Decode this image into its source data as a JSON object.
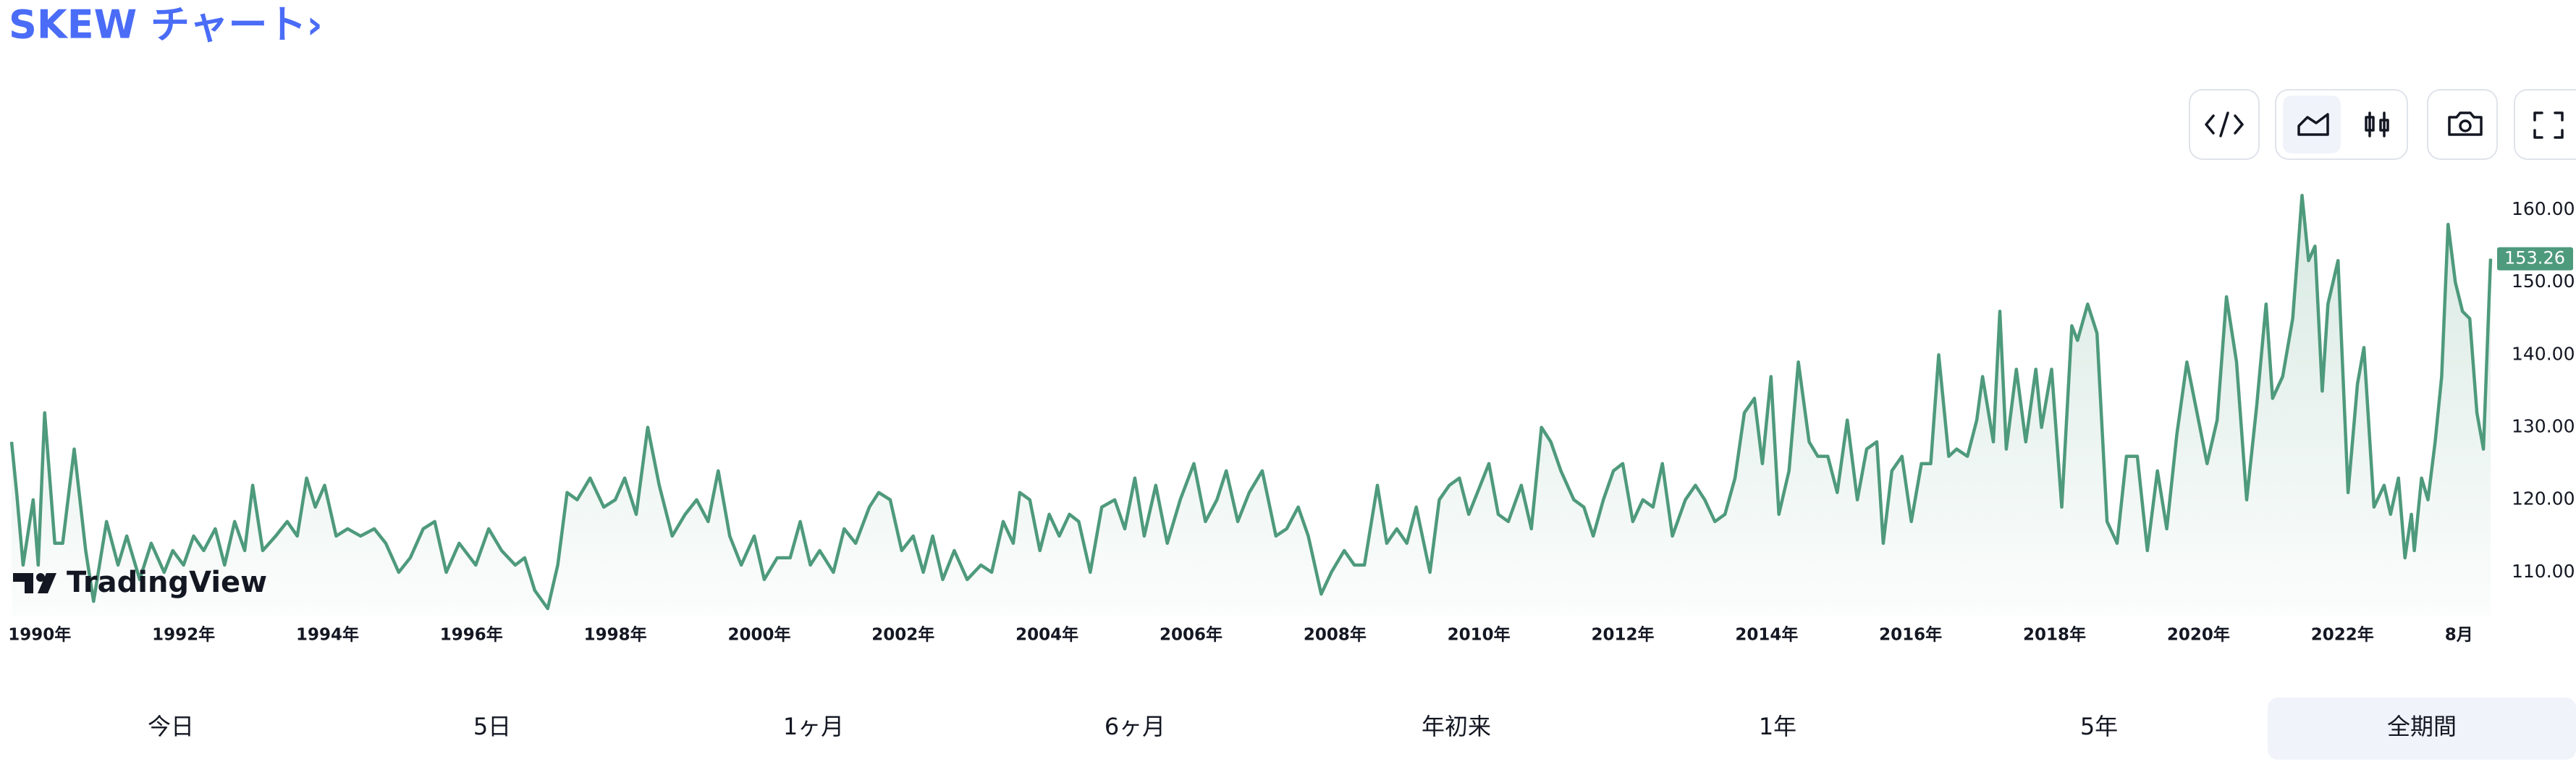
{
  "chart_data": {
    "type": "line",
    "title": "SKEW チャート›",
    "watermark": "TradingView",
    "x": [
      1989.61,
      1989.68,
      1989.77,
      1989.91,
      1989.98,
      1990.07,
      1990.21,
      1990.32,
      1990.48,
      1990.64,
      1990.75,
      1990.93,
      1991.09,
      1991.21,
      1991.39,
      1991.55,
      1991.73,
      1991.85,
      1992.0,
      1992.14,
      1992.28,
      1992.44,
      1992.57,
      1992.71,
      1992.85,
      1992.96,
      1993.1,
      1993.28,
      1993.44,
      1993.58,
      1993.71,
      1993.83,
      1993.96,
      1994.12,
      1994.28,
      1994.46,
      1994.65,
      1994.81,
      1994.99,
      1995.15,
      1995.33,
      1995.49,
      1995.65,
      1995.83,
      1996.06,
      1996.24,
      1996.42,
      1996.61,
      1996.74,
      1996.88,
      1997.06,
      1997.2,
      1997.33,
      1997.47,
      1997.65,
      1997.84,
      1998.0,
      1998.13,
      1998.29,
      1998.45,
      1998.61,
      1998.79,
      1998.97,
      1999.13,
      1999.29,
      1999.43,
      1999.59,
      1999.75,
      1999.93,
      2000.07,
      2000.25,
      2000.43,
      2000.57,
      2000.71,
      2000.84,
      2001.03,
      2001.18,
      2001.34,
      2001.53,
      2001.66,
      2001.82,
      2001.98,
      2002.14,
      2002.28,
      2002.41,
      2002.55,
      2002.71,
      2002.89,
      2003.08,
      2003.23,
      2003.39,
      2003.53,
      2003.62,
      2003.76,
      2003.9,
      2004.03,
      2004.17,
      2004.31,
      2004.44,
      2004.6,
      2004.76,
      2004.94,
      2005.08,
      2005.22,
      2005.35,
      2005.51,
      2005.67,
      2005.85,
      2006.04,
      2006.2,
      2006.36,
      2006.49,
      2006.65,
      2006.81,
      2006.99,
      2007.18,
      2007.33,
      2007.49,
      2007.63,
      2007.81,
      2007.95,
      2008.13,
      2008.27,
      2008.41,
      2008.59,
      2008.72,
      2008.86,
      2009.0,
      2009.13,
      2009.32,
      2009.45,
      2009.59,
      2009.73,
      2009.86,
      2010.02,
      2010.14,
      2010.27,
      2010.41,
      2010.59,
      2010.73,
      2010.87,
      2011.0,
      2011.14,
      2011.32,
      2011.46,
      2011.59,
      2011.73,
      2011.87,
      2012.0,
      2012.14,
      2012.28,
      2012.42,
      2012.55,
      2012.69,
      2012.87,
      2013.01,
      2013.14,
      2013.28,
      2013.42,
      2013.56,
      2013.69,
      2013.83,
      2013.94,
      2014.06,
      2014.17,
      2014.31,
      2014.44,
      2014.59,
      2014.71,
      2014.85,
      2014.98,
      2015.12,
      2015.26,
      2015.39,
      2015.53,
      2015.62,
      2015.74,
      2015.88,
      2016.01,
      2016.15,
      2016.28,
      2016.39,
      2016.53,
      2016.64,
      2016.79,
      2016.92,
      2017.0,
      2017.15,
      2017.24,
      2017.33,
      2017.47,
      2017.6,
      2017.74,
      2017.82,
      2017.96,
      2018.1,
      2018.24,
      2018.32,
      2018.46,
      2018.59,
      2018.73,
      2018.87,
      2019.0,
      2019.15,
      2019.29,
      2019.43,
      2019.56,
      2019.7,
      2019.84,
      2019.98,
      2020.12,
      2020.26,
      2020.39,
      2020.53,
      2020.67,
      2020.81,
      2020.94,
      2021.03,
      2021.17,
      2021.31,
      2021.44,
      2021.53,
      2021.62,
      2021.72,
      2021.8,
      2021.94,
      2022.08,
      2022.21,
      2022.3,
      2022.44,
      2022.58,
      2022.67,
      2022.78,
      2022.87,
      2022.96,
      2023.0,
      2023.1,
      2023.19,
      2023.29,
      2023.38,
      2023.47,
      2023.57,
      2023.67,
      2023.77,
      2023.87,
      2023.96,
      2024.06
    ],
    "series": [
      {
        "name": "SKEW",
        "color": "#4e9a7c",
        "values": [
          128,
          121,
          111,
          120,
          111,
          132,
          114,
          114,
          127,
          113,
          106,
          117,
          111,
          115,
          109,
          114,
          110,
          113,
          111,
          115,
          113,
          116,
          111,
          117,
          113,
          122,
          113,
          115,
          117,
          115,
          123,
          119,
          122,
          115,
          116,
          115,
          116,
          114,
          110,
          112,
          116,
          117,
          110,
          114,
          111,
          116,
          113,
          111,
          112,
          107.5,
          105,
          111,
          121,
          120,
          123,
          119,
          120,
          123,
          118,
          130,
          122,
          115,
          118,
          120,
          117,
          124,
          115,
          111,
          115,
          109,
          112,
          112,
          117,
          111,
          113,
          110,
          116,
          114,
          119,
          121,
          120,
          113,
          115,
          110,
          115,
          109,
          113,
          109,
          111,
          110,
          117,
          114,
          121,
          120,
          113,
          118,
          115,
          118,
          117,
          110,
          119,
          120,
          116,
          123,
          115,
          122,
          114,
          120,
          125,
          117,
          120,
          124,
          117,
          121,
          124,
          115,
          116,
          119,
          115,
          107,
          110,
          113,
          111,
          111,
          122,
          114,
          116,
          114,
          119,
          110,
          120,
          122,
          123,
          118,
          122,
          125,
          118,
          117,
          122,
          116,
          130,
          128,
          124,
          120,
          119,
          115,
          120,
          124,
          125,
          117,
          120,
          119,
          125,
          115,
          120,
          122,
          120,
          117,
          118,
          123,
          132,
          134,
          125,
          137,
          118,
          124,
          139,
          128,
          126,
          126,
          121,
          131,
          120,
          127,
          128,
          114,
          124,
          126,
          117,
          125,
          125,
          140,
          126,
          127,
          126,
          131,
          137,
          128,
          146,
          127,
          138,
          128,
          138,
          130,
          138,
          119,
          144,
          142,
          147,
          143,
          117,
          114,
          126,
          126,
          113,
          124,
          116,
          129,
          139,
          132,
          125,
          131,
          148,
          139,
          120,
          133,
          147,
          134,
          137,
          145,
          162,
          153,
          155,
          135,
          147,
          153,
          121,
          136,
          141,
          119,
          122,
          118,
          123,
          112,
          118,
          113,
          123,
          120,
          128,
          137,
          158,
          150,
          146,
          145,
          132,
          127,
          153.26
        ]
      }
    ],
    "xlim": [
      1989.61,
      2024.06
    ],
    "ylim": [
      104,
      165.2
    ],
    "xticks": [
      {
        "value": 1990,
        "label": "1990年"
      },
      {
        "value": 1992,
        "label": "1992年"
      },
      {
        "value": 1994,
        "label": "1994年"
      },
      {
        "value": 1996,
        "label": "1996年"
      },
      {
        "value": 1998,
        "label": "1998年"
      },
      {
        "value": 2000,
        "label": "2000年"
      },
      {
        "value": 2002,
        "label": "2002年"
      },
      {
        "value": 2004,
        "label": "2004年"
      },
      {
        "value": 2006,
        "label": "2006年"
      },
      {
        "value": 2008,
        "label": "2008年"
      },
      {
        "value": 2010,
        "label": "2010年"
      },
      {
        "value": 2012,
        "label": "2012年"
      },
      {
        "value": 2014,
        "label": "2014年"
      },
      {
        "value": 2016,
        "label": "2016年"
      },
      {
        "value": 2018,
        "label": "2018年"
      },
      {
        "value": 2020,
        "label": "2020年"
      },
      {
        "value": 2022,
        "label": "2022年"
      },
      {
        "value": 2023.62,
        "label": "8月"
      }
    ],
    "yticks": [
      {
        "value": 110,
        "label": "110.00"
      },
      {
        "value": 120,
        "label": "120.00"
      },
      {
        "value": 130,
        "label": "130.00"
      },
      {
        "value": 140,
        "label": "140.00"
      },
      {
        "value": 150,
        "label": "150.00"
      },
      {
        "value": 160,
        "label": "160.00"
      }
    ],
    "grid": false
  },
  "range_buttons": [
    "今日",
    "5日",
    "1ヶ月",
    "6ヶ月",
    "年初来",
    "1年",
    "5年",
    "全期間"
  ]
}
